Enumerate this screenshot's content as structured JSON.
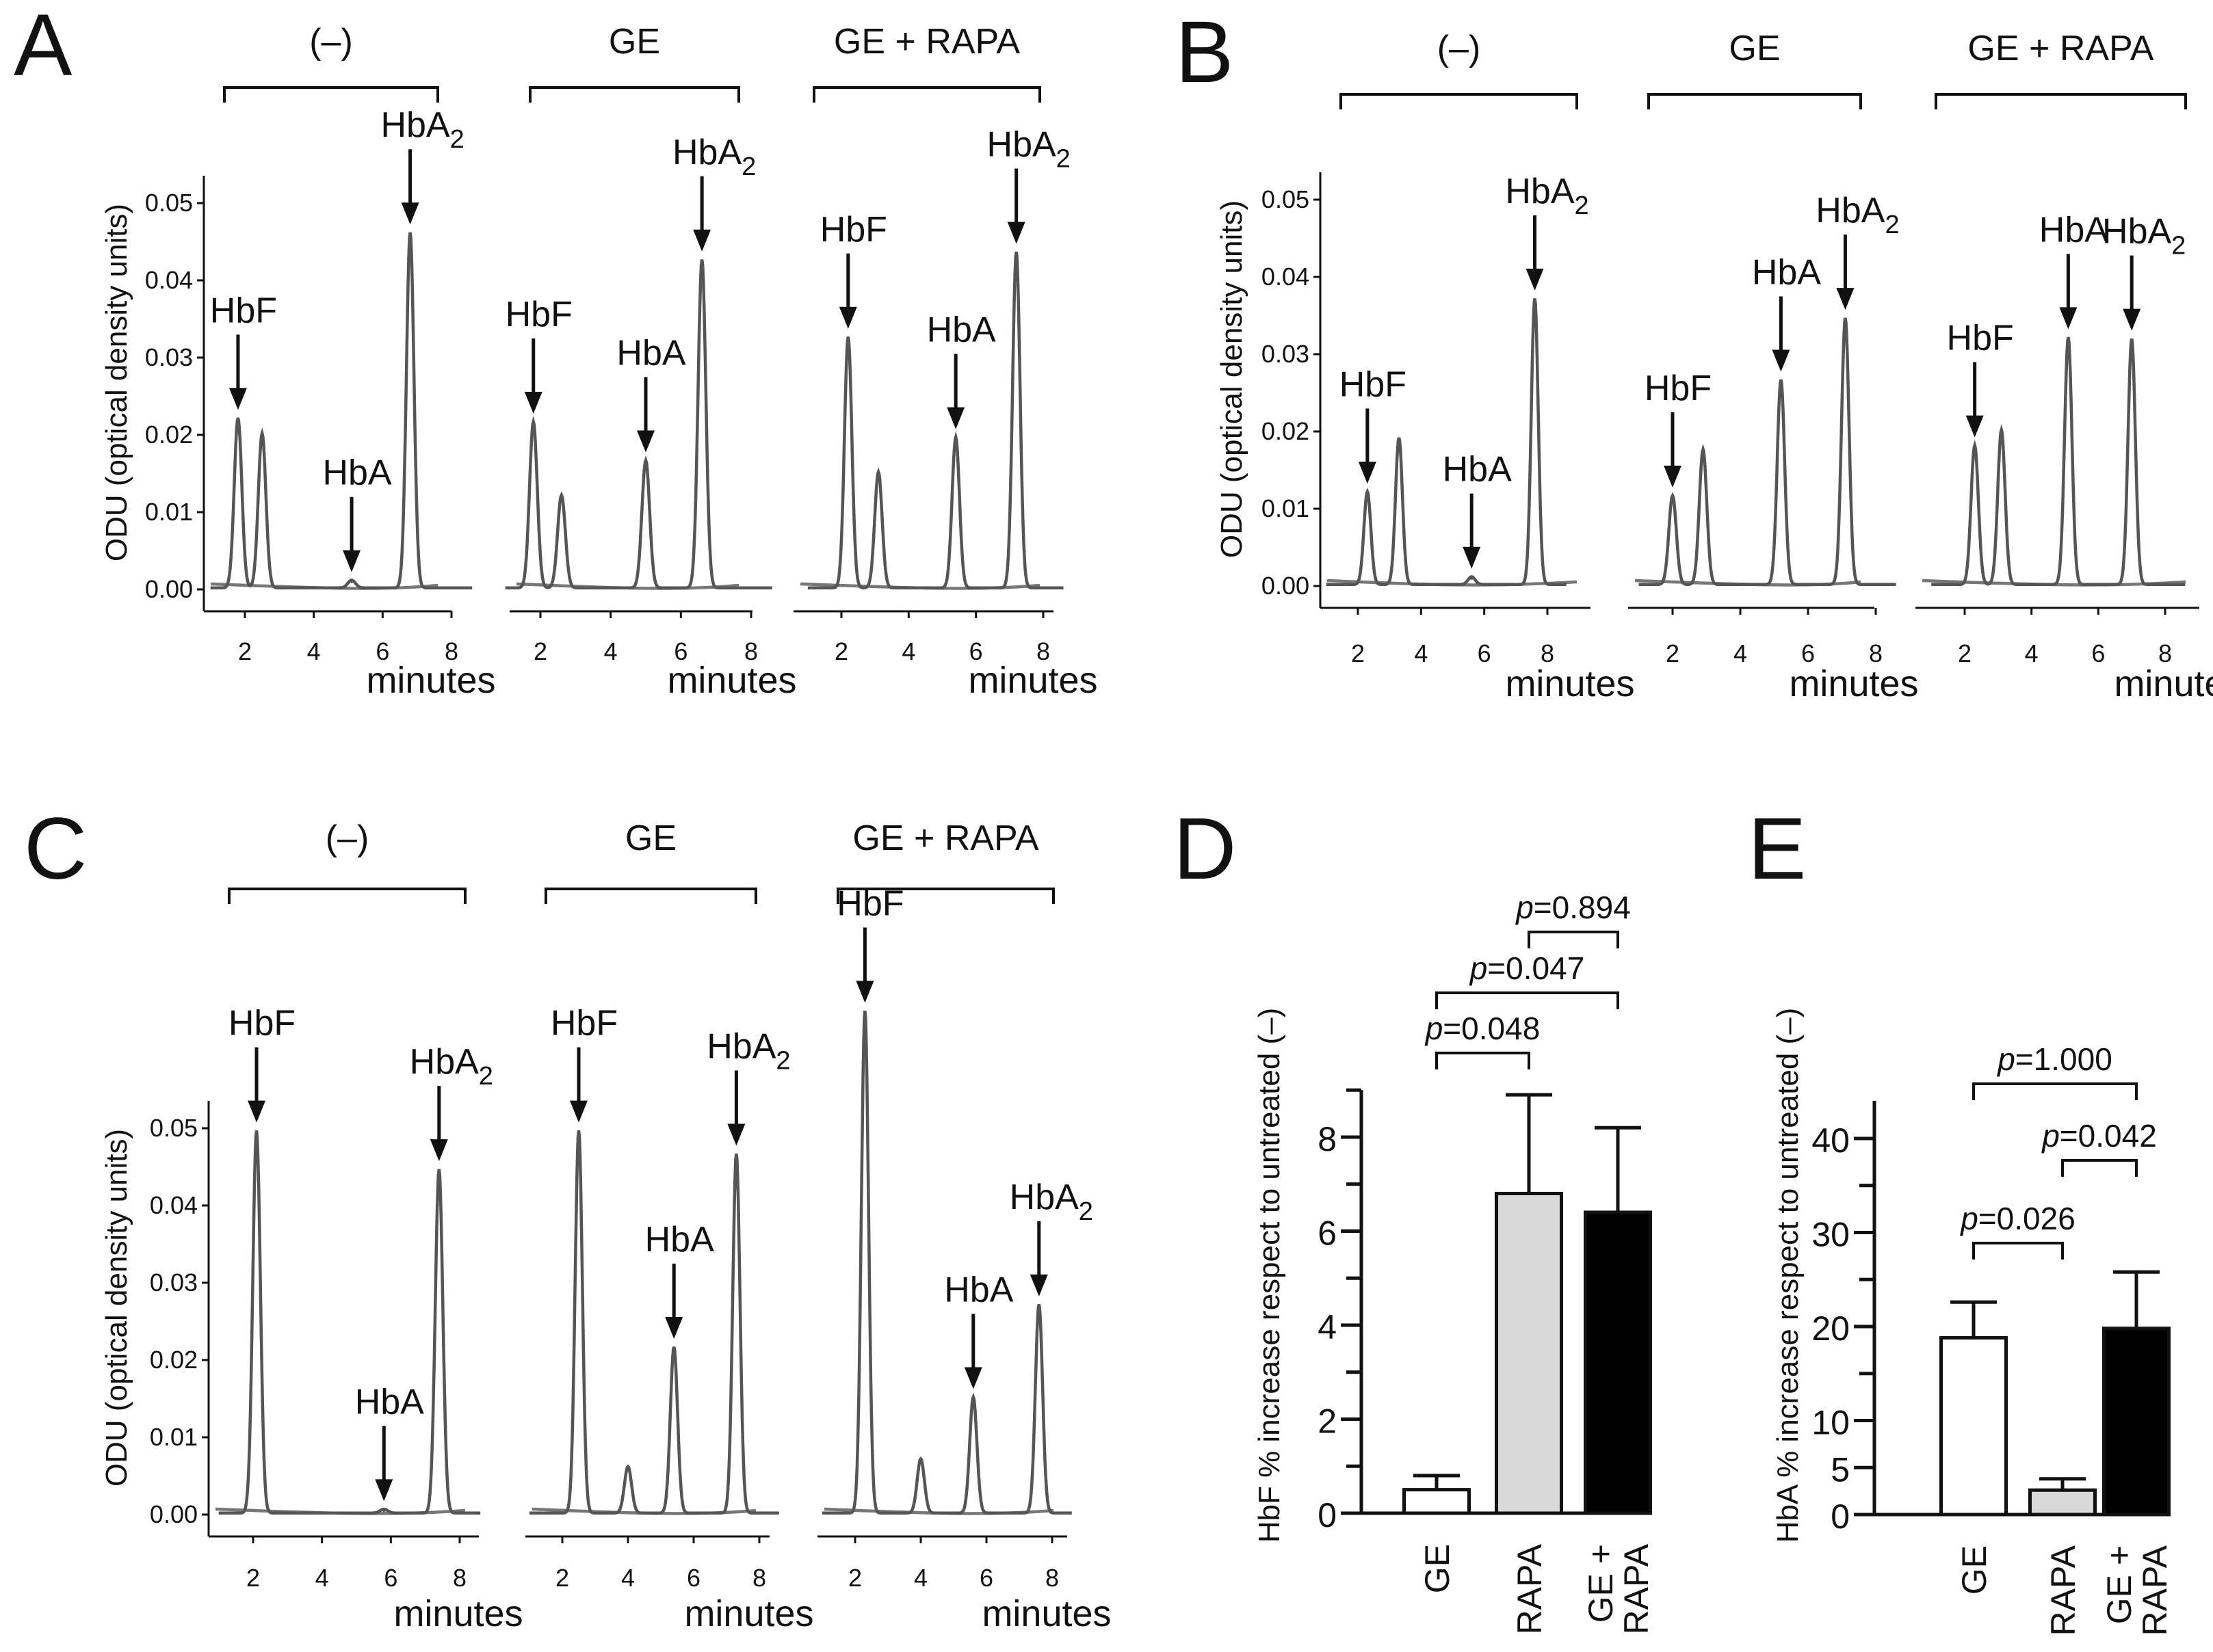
{
  "panels": {
    "A": {
      "letter": "A"
    },
    "B": {
      "letter": "B"
    },
    "C": {
      "letter": "C"
    },
    "D": {
      "letter": "D"
    },
    "E": {
      "letter": "E"
    }
  },
  "common": {
    "ylabel": "ODU (optical density units)",
    "xlabel": "minutes"
  },
  "chart_data": [
    {
      "panel": "A",
      "type": "line",
      "conditions": [
        "(–)",
        "GE",
        "GE + RAPA"
      ],
      "ylabel": "ODU (optical density units)",
      "xlabel": "minutes",
      "yticks": [
        "0.00",
        "0.01",
        "0.02",
        "0.03",
        "0.04",
        "0.05"
      ],
      "ylim": [
        0,
        0.055
      ],
      "xticks": [
        2,
        4,
        6,
        8
      ],
      "subplots": [
        {
          "condition": "(–)",
          "peaks": [
            {
              "name": "HbF",
              "x": 1.8,
              "y": 0.022
            },
            {
              "name": "",
              "x": 2.5,
              "y": 0.02
            },
            {
              "name": "HbA",
              "x": 5.1,
              "y": 0.001
            },
            {
              "name": "HbA2",
              "x": 6.8,
              "y": 0.046
            }
          ]
        },
        {
          "condition": "GE",
          "peaks": [
            {
              "name": "HbF",
              "x": 1.8,
              "y": 0.0215
            },
            {
              "name": "",
              "x": 2.6,
              "y": 0.012
            },
            {
              "name": "HbA",
              "x": 5.0,
              "y": 0.0165
            },
            {
              "name": "HbA2",
              "x": 6.6,
              "y": 0.0425
            }
          ]
        },
        {
          "condition": "GE + RAPA",
          "peaks": [
            {
              "name": "HbF",
              "x": 2.2,
              "y": 0.0325
            },
            {
              "name": "",
              "x": 3.1,
              "y": 0.015
            },
            {
              "name": "HbA",
              "x": 5.4,
              "y": 0.0195
            },
            {
              "name": "HbA2",
              "x": 7.2,
              "y": 0.0435
            }
          ]
        }
      ]
    },
    {
      "panel": "B",
      "type": "line",
      "conditions": [
        "(–)",
        "GE",
        "GE + RAPA"
      ],
      "ylabel": "ODU (optical density units)",
      "xlabel": "minutes",
      "yticks": [
        "0.00",
        "0.01",
        "0.02",
        "0.03",
        "0.04",
        "0.05"
      ],
      "ylim": [
        0,
        0.055
      ],
      "xticks": [
        2,
        4,
        6,
        8
      ],
      "subplots": [
        {
          "condition": "(–)",
          "peaks": [
            {
              "name": "HbF",
              "x": 2.3,
              "y": 0.012
            },
            {
              "name": "",
              "x": 3.3,
              "y": 0.019
            },
            {
              "name": "HbA",
              "x": 5.6,
              "y": 0.001
            },
            {
              "name": "HbA2",
              "x": 7.6,
              "y": 0.037
            }
          ]
        },
        {
          "condition": "GE",
          "peaks": [
            {
              "name": "HbF",
              "x": 2.0,
              "y": 0.0115
            },
            {
              "name": "",
              "x": 2.9,
              "y": 0.0175
            },
            {
              "name": "HbA",
              "x": 5.2,
              "y": 0.0265
            },
            {
              "name": "HbA2",
              "x": 7.1,
              "y": 0.0345
            }
          ]
        },
        {
          "condition": "GE + RAPA",
          "peaks": [
            {
              "name": "HbF",
              "x": 2.3,
              "y": 0.018
            },
            {
              "name": "",
              "x": 3.1,
              "y": 0.02
            },
            {
              "name": "HbA",
              "x": 5.1,
              "y": 0.032
            },
            {
              "name": "HbA2",
              "x": 7.0,
              "y": 0.0318
            }
          ]
        }
      ]
    },
    {
      "panel": "C",
      "type": "line",
      "conditions": [
        "(–)",
        "GE",
        "GE + RAPA"
      ],
      "ylabel": "ODU (optical density units)",
      "xlabel": "minutes",
      "yticks": [
        "0.00",
        "0.01",
        "0.02",
        "0.03",
        "0.04",
        "0.05"
      ],
      "ylim": [
        0,
        0.055
      ],
      "xticks": [
        2,
        4,
        6,
        8
      ],
      "subplots": [
        {
          "condition": "(–)",
          "peaks": [
            {
              "name": "HbF",
              "x": 2.1,
              "y": 0.0495
            },
            {
              "name": "HbA",
              "x": 5.8,
              "y": 0.0005
            },
            {
              "name": "HbA2",
              "x": 7.4,
              "y": 0.0445
            }
          ]
        },
        {
          "condition": "GE",
          "peaks": [
            {
              "name": "HbF",
              "x": 2.5,
              "y": 0.0495
            },
            {
              "name": "",
              "x": 4.0,
              "y": 0.006
            },
            {
              "name": "HbA",
              "x": 5.4,
              "y": 0.0215
            },
            {
              "name": "HbA2",
              "x": 7.3,
              "y": 0.0465
            }
          ]
        },
        {
          "condition": "GE + RAPA",
          "peaks": [
            {
              "name": "HbF",
              "x": 2.3,
              "y": 0.065
            },
            {
              "name": "",
              "x": 4.0,
              "y": 0.007
            },
            {
              "name": "HbA",
              "x": 5.6,
              "y": 0.015
            },
            {
              "name": "HbA2",
              "x": 7.6,
              "y": 0.027
            }
          ]
        }
      ]
    },
    {
      "panel": "D",
      "type": "bar",
      "ylabel": "HbF % increase respect to untreated (–)",
      "categories": [
        "GE",
        "RAPA",
        "GE + RAPA"
      ],
      "category_lines": [
        [
          "GE"
        ],
        [
          "RAPA"
        ],
        [
          "GE +",
          "RAPA"
        ]
      ],
      "values": [
        0.5,
        6.8,
        6.4
      ],
      "errors": [
        0.3,
        2.1,
        1.8
      ],
      "colors": [
        "#ffffff",
        "#d9d9d9",
        "#000000"
      ],
      "ylim": [
        0,
        9
      ],
      "yticks": [
        0,
        2,
        4,
        6,
        8
      ],
      "comparisons": [
        {
          "from": 0,
          "to": 1,
          "p_prefix": "p",
          "p_value": "=0.048"
        },
        {
          "from": 0,
          "to": 2,
          "p_prefix": "p",
          "p_value": "=0.047"
        },
        {
          "from": 1,
          "to": 2,
          "p_prefix": "p",
          "p_value": "=0.894"
        }
      ]
    },
    {
      "panel": "E",
      "type": "bar",
      "ylabel": "HbA % increase respect to untreated (–)",
      "categories": [
        "GE",
        "RAPA",
        "GE + RAPA"
      ],
      "category_lines": [
        [
          "GE"
        ],
        [
          "RAPA"
        ],
        [
          "GE +",
          "RAPA"
        ]
      ],
      "values": [
        18.8,
        2.6,
        19.8
      ],
      "errors": [
        3.8,
        1.2,
        6.0
      ],
      "colors": [
        "#ffffff",
        "#d9d9d9",
        "#000000"
      ],
      "ylim": [
        0,
        44
      ],
      "yticks": [
        0,
        5,
        10,
        20,
        30,
        40
      ],
      "comparisons": [
        {
          "from": 0,
          "to": 1,
          "p_prefix": "p",
          "p_value": "=0.026"
        },
        {
          "from": 1,
          "to": 2,
          "p_prefix": "p",
          "p_value": "=0.042"
        },
        {
          "from": 0,
          "to": 2,
          "p_prefix": "p",
          "p_value": "=1.000"
        }
      ]
    }
  ]
}
